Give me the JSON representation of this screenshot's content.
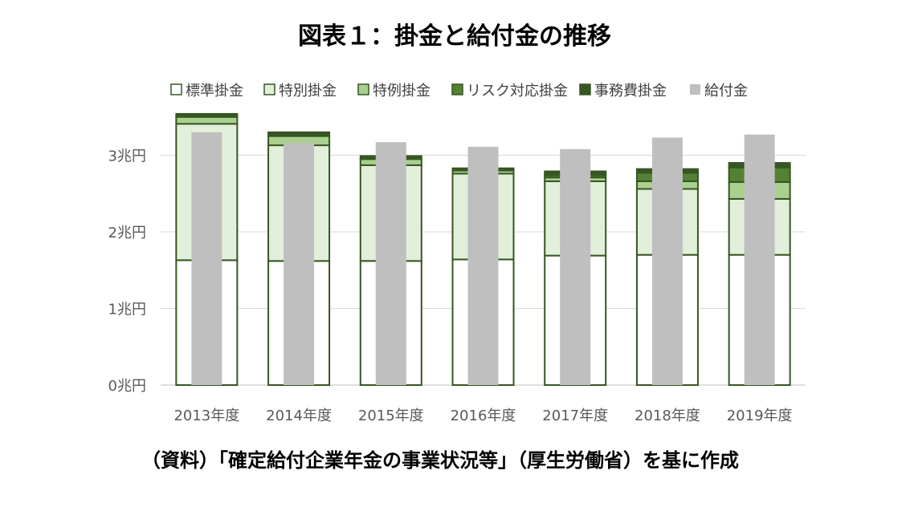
{
  "title": "図表１：掛金と給付金の推移",
  "source_note": "（資料）「確定給付企業年金の事業状況等」（厚生労働省）を基に作成",
  "chart_data": {
    "type": "bar",
    "title": "図表１：掛金と給付金の推移",
    "categories": [
      "2013年度",
      "2014年度",
      "2015年度",
      "2016年度",
      "2017年度",
      "2018年度",
      "2019年度"
    ],
    "y_ticks": [
      "0兆円",
      "1兆円",
      "2兆円",
      "3兆円"
    ],
    "ylim": [
      0,
      3.5
    ],
    "grid": true,
    "legend_position": "top",
    "stacked_series": [
      {
        "name": "標準掛金",
        "color": "#ffffff",
        "values": [
          1.63,
          1.62,
          1.62,
          1.64,
          1.69,
          1.7,
          1.7
        ]
      },
      {
        "name": "特別掛金",
        "color": "#e2efda",
        "values": [
          1.78,
          1.51,
          1.25,
          1.12,
          0.97,
          0.86,
          0.73
        ]
      },
      {
        "name": "特例掛金",
        "color": "#a9d08e",
        "values": [
          0.09,
          0.12,
          0.08,
          0.04,
          0.05,
          0.1,
          0.22
        ]
      },
      {
        "name": "リスク対応掛金",
        "color": "#548235",
        "values": [
          0.0,
          0.0,
          0.0,
          0.0,
          0.03,
          0.11,
          0.19
        ]
      },
      {
        "name": "事務費掛金",
        "color": "#375623",
        "values": [
          0.04,
          0.05,
          0.04,
          0.03,
          0.05,
          0.05,
          0.06
        ]
      }
    ],
    "side_series": {
      "name": "給付金",
      "color": "#bfbfbf",
      "values": [
        3.3,
        3.16,
        3.17,
        3.11,
        3.08,
        3.23,
        3.27
      ]
    },
    "outline_color": "#375623"
  }
}
